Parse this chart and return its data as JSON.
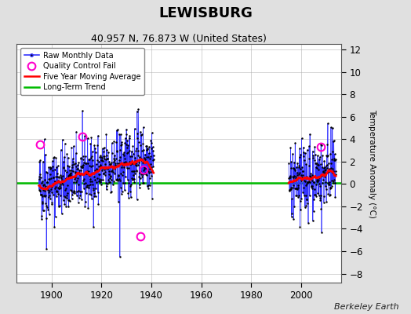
{
  "title": "LEWISBURG",
  "subtitle": "40.957 N, 76.873 W (United States)",
  "ylabel_right": "Temperature Anomaly (°C)",
  "credit": "Berkeley Earth",
  "ylim": [
    -8.8,
    12.5
  ],
  "xlim": [
    1886,
    2016
  ],
  "yticks": [
    -8,
    -6,
    -4,
    -2,
    0,
    2,
    4,
    6,
    8,
    10,
    12
  ],
  "xticks": [
    1900,
    1920,
    1940,
    1960,
    1980,
    2000
  ],
  "bg_color": "#e0e0e0",
  "plot_bg_color": "#ffffff",
  "period1_start": 1895,
  "period1_end": 1940,
  "period2_start": 1995,
  "period2_end": 2013,
  "long_term_trend_y": 0.08,
  "seed": 42,
  "qc_fail_x": [
    1895.5,
    1912.3,
    1937.0,
    1935.5,
    2007.8
  ],
  "qc_fail_y": [
    3.5,
    4.2,
    1.3,
    -4.7,
    3.3
  ]
}
